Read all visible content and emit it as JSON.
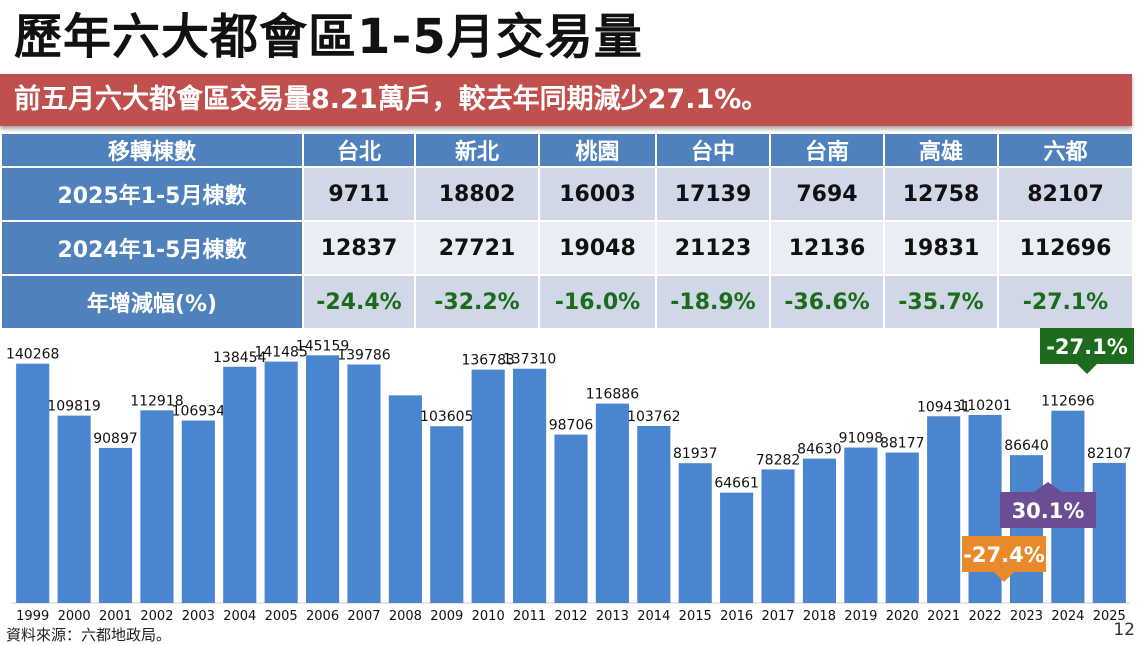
{
  "page": {
    "title": "歷年六大都會區1-5月交易量",
    "subtitle": "前五月六大都會區交易量8.21萬戶，較去年同期減少27.1%。",
    "source": "資料來源：六都地政局。",
    "page_number": "12"
  },
  "table": {
    "header_label": "移轉棟數",
    "columns": [
      "台北",
      "新北",
      "桃園",
      "台中",
      "台南",
      "高雄",
      "六都"
    ],
    "rows": [
      {
        "label": "2025年1-5月棟數",
        "values": [
          "9711",
          "18802",
          "16003",
          "17139",
          "7694",
          "12758",
          "82107"
        ]
      },
      {
        "label": "2024年1-5月棟數",
        "values": [
          "12837",
          "27721",
          "19048",
          "21123",
          "12136",
          "19831",
          "112696"
        ]
      },
      {
        "label": "年增減幅(%)",
        "values": [
          "-24.4%",
          "-32.2%",
          "-16.0%",
          "-18.9%",
          "-36.6%",
          "-35.7%",
          "-27.1%"
        ]
      }
    ]
  },
  "chart_data": {
    "type": "bar",
    "categories": [
      "1999",
      "2000",
      "2001",
      "2002",
      "2003",
      "2004",
      "2005",
      "2006",
      "2007",
      "2008",
      "2009",
      "2010",
      "2011",
      "2012",
      "2013",
      "2014",
      "2015",
      "2016",
      "2017",
      "2018",
      "2019",
      "2020",
      "2021",
      "2022",
      "2023",
      "2024",
      "2025"
    ],
    "values": [
      140268,
      109819,
      90897,
      112918,
      106934,
      138454,
      141485,
      145159,
      139786,
      null,
      103605,
      136783,
      137310,
      98706,
      116886,
      103762,
      81937,
      64661,
      78282,
      84630,
      91098,
      88177,
      109431,
      110201,
      86640,
      112696,
      82107
    ],
    "data_labels": [
      "140268",
      "109819",
      "90897",
      "112918",
      "106934",
      "138454",
      "141485",
      "145159",
      "139786",
      "",
      "103605",
      "136783",
      "137310",
      "98706",
      "116886",
      "103762",
      "81937",
      "64661",
      "78282",
      "84630",
      "91098",
      "88177",
      "109431",
      "110201",
      "86640",
      "112696",
      "82107"
    ],
    "ylim": [
      0,
      160000
    ],
    "bar_color": "#4a86d0",
    "callouts": [
      {
        "text": "-27.1%",
        "color": "#1e6b1e",
        "anchor": "2025"
      },
      {
        "text": "30.1%",
        "color": "#6a4d93",
        "anchor": "2023"
      },
      {
        "text": "-27.4%",
        "color": "#e8892a",
        "anchor": "2022"
      }
    ],
    "grid": false,
    "legend": "none"
  }
}
